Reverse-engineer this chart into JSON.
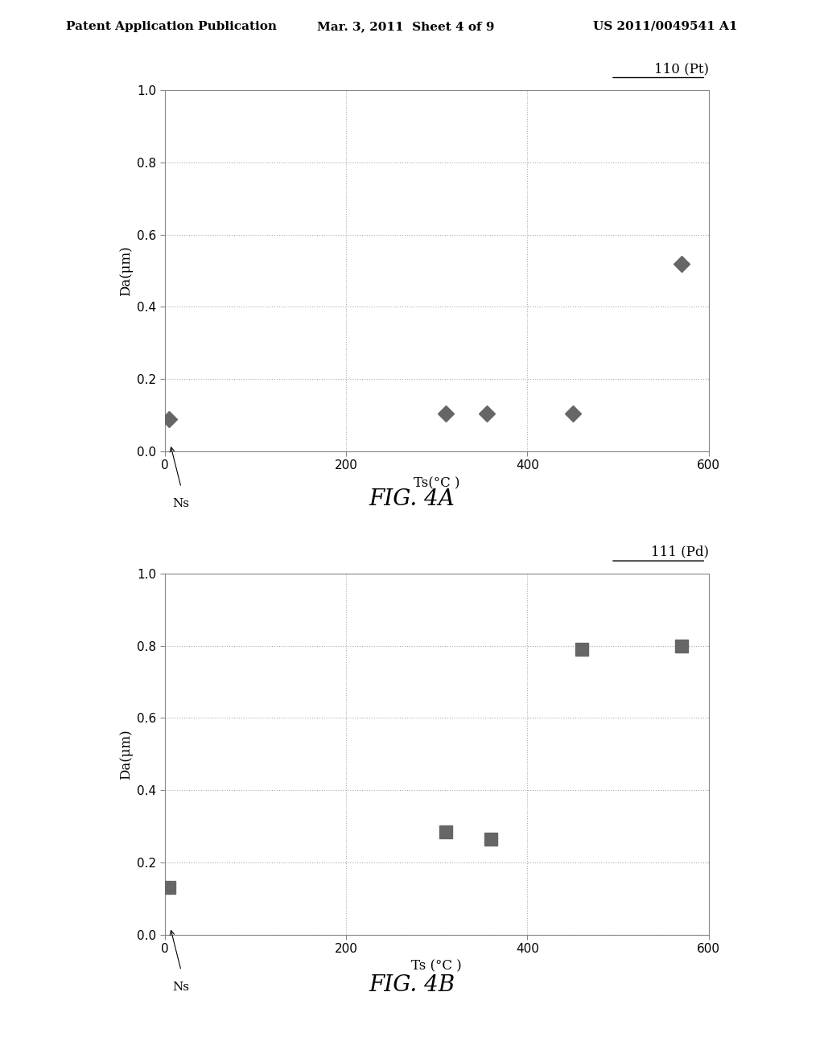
{
  "fig4a": {
    "title": "110 (Pt)",
    "ylabel": "Da(μm)",
    "xlabel": "Ts(°C )",
    "xlabel_ns": "Ns",
    "xlim": [
      0,
      600
    ],
    "ylim": [
      0.0,
      1.0
    ],
    "yticks": [
      0.0,
      0.2,
      0.4,
      0.6,
      0.8,
      1.0
    ],
    "xticks": [
      0,
      200,
      400,
      600
    ],
    "data_x": [
      5,
      310,
      355,
      450,
      570
    ],
    "data_y": [
      0.09,
      0.105,
      0.105,
      0.105,
      0.52
    ],
    "marker": "D",
    "markercolor": "#666666",
    "markersize": 10,
    "caption": "FIG. 4A"
  },
  "fig4b": {
    "title": "111 (Pd)",
    "ylabel": "Da(μm)",
    "xlabel": "Ts (°C )",
    "xlabel_ns": "Ns",
    "xlim": [
      0,
      600
    ],
    "ylim": [
      0.0,
      1.0
    ],
    "yticks": [
      0.0,
      0.2,
      0.4,
      0.6,
      0.8,
      1.0
    ],
    "xticks": [
      0,
      200,
      400,
      600
    ],
    "data_x": [
      5,
      310,
      360,
      460,
      570
    ],
    "data_y": [
      0.13,
      0.285,
      0.265,
      0.79,
      0.8
    ],
    "marker": "s",
    "markercolor": "#666666",
    "markersize": 11,
    "caption": "FIG. 4B"
  },
  "bg_color": "#ffffff",
  "text_color": "#000000",
  "grid_color": "#aaaaaa",
  "header_left": "Patent Application Publication",
  "header_mid": "Mar. 3, 2011  Sheet 4 of 9",
  "header_right": "US 2011/0049541 A1",
  "header_fontsize": 11,
  "caption_fontsize": 20,
  "axis_label_fontsize": 12,
  "tick_fontsize": 11,
  "title_fontsize": 12
}
